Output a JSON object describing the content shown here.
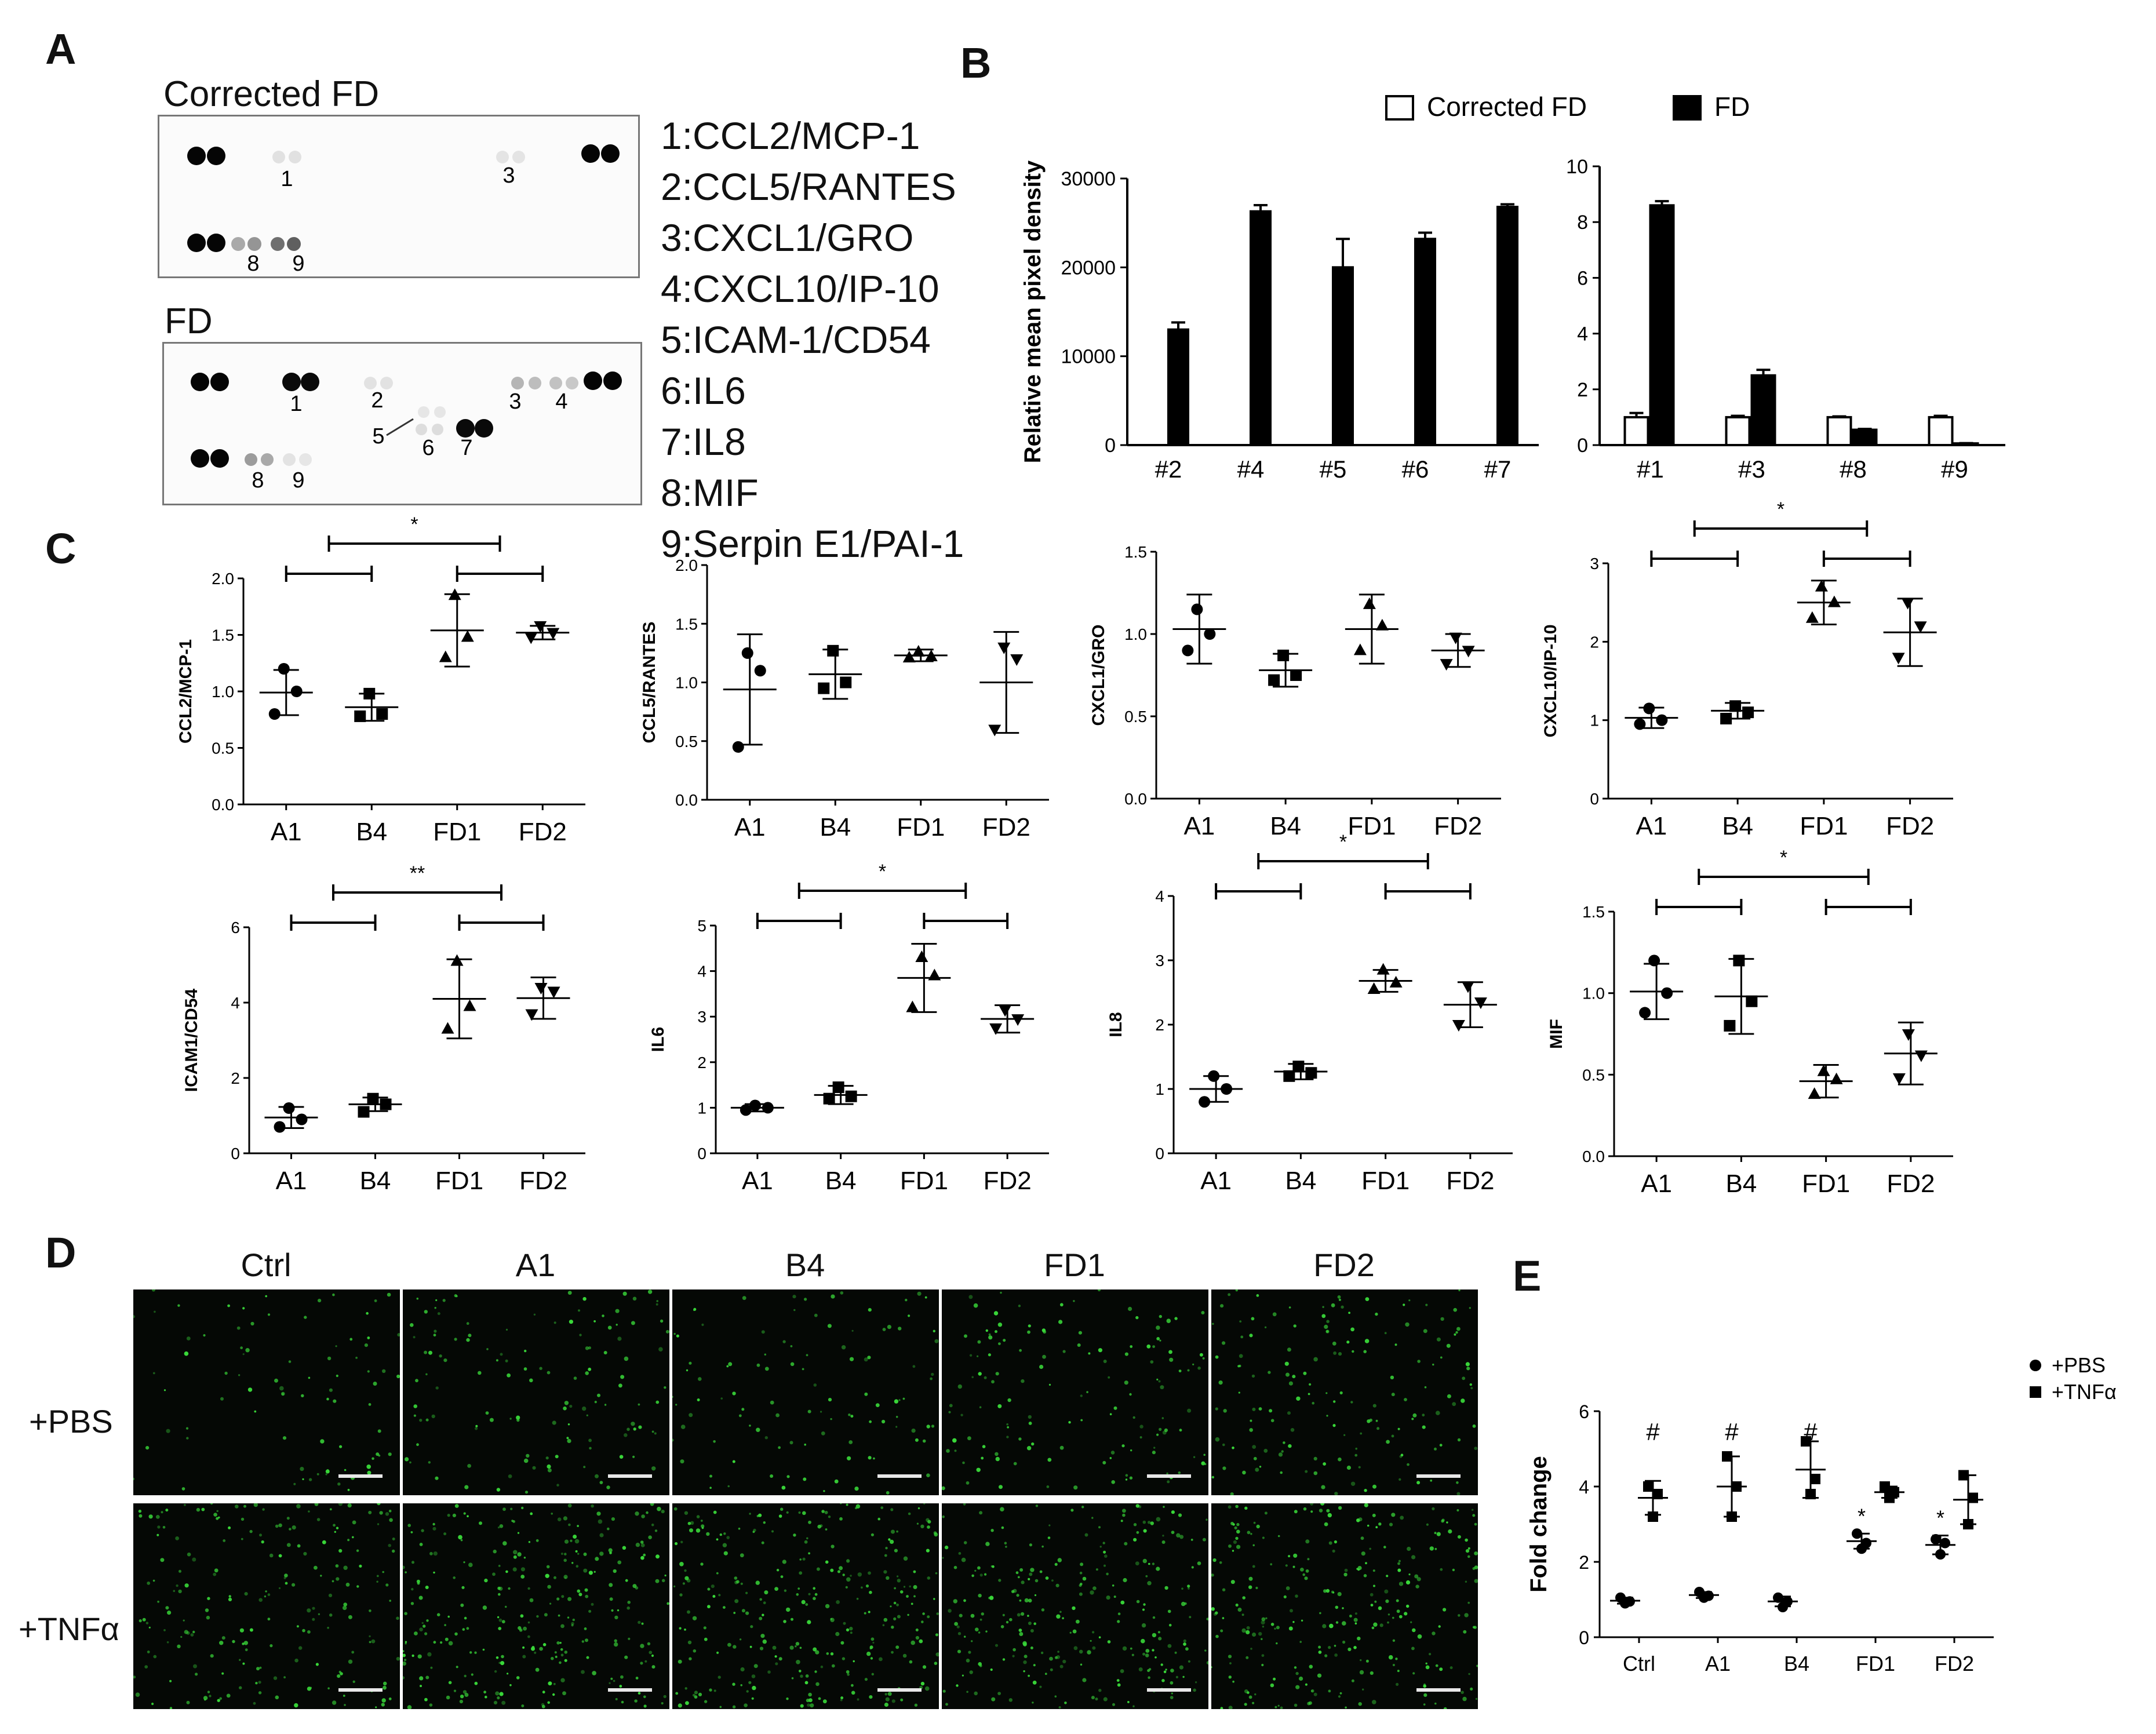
{
  "panel_labels": {
    "A": "A",
    "B": "B",
    "C": "C",
    "D": "D",
    "E": "E"
  },
  "panel_a": {
    "blots": [
      {
        "title": "Corrected FD",
        "spot_labels": [
          "1",
          "3",
          "8",
          "9"
        ],
        "note": "Reference spots at corners; faint spots at 1, 3; medium spots at 8, 9"
      },
      {
        "title": "FD",
        "spot_labels": [
          "1",
          "2",
          "3",
          "4",
          "5",
          "6",
          "7",
          "8",
          "9"
        ]
      }
    ],
    "legend": [
      "1:CCL2/MCP-1",
      "2:CCL5/RANTES",
      "3:CXCL1/GRO",
      "4:CXCL10/IP-10",
      "5:ICAM-1/CD54",
      "6:IL6",
      "7:IL8",
      "8:MIF",
      "9:Serpin E1/PAI-1"
    ]
  },
  "panel_d": {
    "columns": [
      "Ctrl",
      "A1",
      "B4",
      "FD1",
      "FD2"
    ],
    "rows": [
      "+PBS",
      "+TNFα"
    ],
    "cell_color": "#39d839",
    "density": [
      [
        0.35,
        0.55,
        0.45,
        0.6,
        0.7
      ],
      [
        0.9,
        1.25,
        1.3,
        1.15,
        1.2
      ]
    ]
  },
  "chart_data": [
    {
      "id": "B-left",
      "type": "bar",
      "ylabel": "Relative mean pixel density",
      "categories": [
        "#2",
        "#4",
        "#5",
        "#6",
        "#7"
      ],
      "ylim": [
        0,
        30000
      ],
      "yticks": [
        0,
        10000,
        20000,
        30000
      ],
      "legend": [
        "Corrected FD",
        "FD"
      ],
      "series": [
        {
          "name": "Corrected FD",
          "values": [
            0,
            0,
            0,
            0,
            0
          ],
          "errors": [
            0,
            0,
            0,
            0,
            0
          ],
          "fill": "#ffffff"
        },
        {
          "name": "FD",
          "values": [
            13000,
            26300,
            20000,
            23200,
            26800
          ],
          "errors": [
            800,
            700,
            3200,
            700,
            300
          ],
          "fill": "#000000"
        }
      ]
    },
    {
      "id": "B-right",
      "type": "bar",
      "categories": [
        "#1",
        "#3",
        "#8",
        "#9"
      ],
      "ylim": [
        0,
        10
      ],
      "yticks": [
        0,
        2,
        4,
        6,
        8,
        10
      ],
      "series": [
        {
          "name": "Corrected FD",
          "values": [
            1.0,
            1.0,
            1.0,
            1.0
          ],
          "errors": [
            0.15,
            0.05,
            0.03,
            0.05
          ],
          "fill": "#ffffff"
        },
        {
          "name": "FD",
          "values": [
            8.6,
            2.5,
            0.55,
            0.06
          ],
          "errors": [
            0.15,
            0.2,
            0.03,
            0.01
          ],
          "fill": "#000000"
        }
      ]
    },
    {
      "id": "C-CCL2",
      "type": "scatter",
      "ylabel": "CCL2/MCP-1",
      "categories": [
        "A1",
        "B4",
        "FD1",
        "FD2"
      ],
      "ylim": [
        0,
        2.0
      ],
      "yticks": [
        "0.0",
        "0.5",
        "1.0",
        "1.5",
        "2.0"
      ],
      "points": [
        [
          1.2,
          1.0,
          0.8
        ],
        [
          0.98,
          0.8,
          0.78
        ],
        [
          1.85,
          1.48,
          1.3
        ],
        [
          1.58,
          1.52,
          1.48
        ]
      ],
      "mean": [
        0.99,
        0.86,
        1.54,
        1.52
      ],
      "sd": [
        0.2,
        0.12,
        0.32,
        0.06
      ],
      "sig": [
        {
          "from": 0,
          "to": 1
        },
        {
          "from": 2,
          "to": 3
        },
        {
          "from": 0.5,
          "to": 2.5,
          "label": "*"
        }
      ]
    },
    {
      "id": "C-CCL5",
      "type": "scatter",
      "ylabel": "CCL5/RANTES",
      "categories": [
        "A1",
        "B4",
        "FD1",
        "FD2"
      ],
      "ylim": [
        0,
        2.0
      ],
      "yticks": [
        "0.0",
        "0.5",
        "1.0",
        "1.5",
        "2.0"
      ],
      "points": [
        [
          1.25,
          1.1,
          0.45
        ],
        [
          1.27,
          1.0,
          0.95
        ],
        [
          1.26,
          1.22,
          1.21
        ],
        [
          1.3,
          1.2,
          0.6
        ]
      ],
      "mean": [
        0.94,
        1.07,
        1.23,
        1.0
      ],
      "sd": [
        0.47,
        0.21,
        0.05,
        0.43
      ],
      "sig": []
    },
    {
      "id": "C-CXCL1",
      "type": "scatter",
      "ylabel": "CXCL1/GRO",
      "categories": [
        "A1",
        "B4",
        "FD1",
        "FD2"
      ],
      "ylim": [
        0,
        1.5
      ],
      "yticks": [
        "0.0",
        "0.5",
        "1.0",
        "1.5"
      ],
      "points": [
        [
          1.15,
          1.0,
          0.9
        ],
        [
          0.87,
          0.75,
          0.72
        ],
        [
          1.18,
          1.05,
          0.9
        ],
        [
          0.98,
          0.9,
          0.82
        ]
      ],
      "mean": [
        1.03,
        0.78,
        1.03,
        0.9
      ],
      "sd": [
        0.21,
        0.1,
        0.21,
        0.1
      ],
      "sig": []
    },
    {
      "id": "C-CXCL10",
      "type": "scatter",
      "ylabel": "CXCL10/IP-10",
      "categories": [
        "A1",
        "B4",
        "FD1",
        "FD2"
      ],
      "ylim": [
        0,
        3
      ],
      "yticks": [
        "0",
        "1",
        "2",
        "3"
      ],
      "points": [
        [
          1.15,
          1.0,
          0.95
        ],
        [
          1.18,
          1.1,
          1.02
        ],
        [
          2.7,
          2.5,
          2.3
        ],
        [
          2.5,
          2.2,
          1.8
        ]
      ],
      "mean": [
        1.03,
        1.12,
        2.5,
        2.12
      ],
      "sd": [
        0.13,
        0.1,
        0.28,
        0.43
      ],
      "sig": [
        {
          "from": 0,
          "to": 1
        },
        {
          "from": 2,
          "to": 3
        },
        {
          "from": 0.5,
          "to": 2.5,
          "label": "*"
        }
      ]
    },
    {
      "id": "C-ICAM1",
      "type": "scatter",
      "ylabel": "ICAM1/CD54",
      "categories": [
        "A1",
        "B4",
        "FD1",
        "FD2"
      ],
      "ylim": [
        0,
        6
      ],
      "yticks": [
        "0",
        "2",
        "4",
        "6"
      ],
      "points": [
        [
          1.2,
          0.9,
          0.7
        ],
        [
          1.45,
          1.3,
          1.1
        ],
        [
          5.1,
          3.9,
          3.3
        ],
        [
          4.4,
          4.3,
          3.7
        ]
      ],
      "mean": [
        0.95,
        1.3,
        4.1,
        4.12
      ],
      "sd": [
        0.28,
        0.18,
        1.05,
        0.55
      ],
      "sig": [
        {
          "from": 0,
          "to": 1
        },
        {
          "from": 2,
          "to": 3
        },
        {
          "from": 0.5,
          "to": 2.5,
          "label": "**"
        }
      ]
    },
    {
      "id": "C-IL6",
      "type": "scatter",
      "ylabel": "IL6",
      "categories": [
        "A1",
        "B4",
        "FD1",
        "FD2"
      ],
      "ylim": [
        0,
        5
      ],
      "yticks": [
        "0",
        "1",
        "2",
        "3",
        "4",
        "5"
      ],
      "points": [
        [
          1.05,
          1.0,
          0.95
        ],
        [
          1.45,
          1.25,
          1.2
        ],
        [
          4.3,
          3.9,
          3.2
        ],
        [
          3.15,
          2.95,
          2.75
        ]
      ],
      "mean": [
        1.0,
        1.28,
        3.85,
        2.95
      ],
      "sd": [
        0.08,
        0.2,
        0.75,
        0.3
      ],
      "sig": [
        {
          "from": 0,
          "to": 1
        },
        {
          "from": 2,
          "to": 3
        },
        {
          "from": 0.5,
          "to": 2.5,
          "label": "*"
        }
      ]
    },
    {
      "id": "C-IL8",
      "type": "scatter",
      "ylabel": "IL8",
      "categories": [
        "A1",
        "B4",
        "FD1",
        "FD2"
      ],
      "ylim": [
        0,
        4
      ],
      "yticks": [
        "0",
        "1",
        "2",
        "3",
        "4"
      ],
      "points": [
        [
          1.2,
          1.0,
          0.8
        ],
        [
          1.35,
          1.25,
          1.2
        ],
        [
          2.85,
          2.65,
          2.55
        ],
        [
          2.6,
          2.35,
          2.0
        ]
      ],
      "mean": [
        1.0,
        1.27,
        2.68,
        2.31
      ],
      "sd": [
        0.2,
        0.12,
        0.17,
        0.35
      ],
      "sig": [
        {
          "from": 0,
          "to": 1
        },
        {
          "from": 2,
          "to": 3
        },
        {
          "from": 0.5,
          "to": 2.5,
          "label": "*"
        }
      ]
    },
    {
      "id": "C-MIF",
      "type": "scatter",
      "ylabel": "MIF",
      "categories": [
        "A1",
        "B4",
        "FD1",
        "FD2"
      ],
      "ylim": [
        0,
        1.5
      ],
      "yticks": [
        "0.0",
        "0.5",
        "1.0",
        "1.5"
      ],
      "points": [
        [
          1.2,
          1.0,
          0.88
        ],
        [
          1.2,
          0.95,
          0.8
        ],
        [
          0.52,
          0.47,
          0.38
        ],
        [
          0.75,
          0.62,
          0.48
        ]
      ],
      "mean": [
        1.01,
        0.98,
        0.46,
        0.63
      ],
      "sd": [
        0.17,
        0.23,
        0.1,
        0.19
      ],
      "sig": [
        {
          "from": 0,
          "to": 1
        },
        {
          "from": 2,
          "to": 3
        },
        {
          "from": 0.5,
          "to": 2.5,
          "label": "*"
        }
      ]
    },
    {
      "id": "E",
      "type": "scatter",
      "ylabel": "Fold change",
      "categories": [
        "Ctrl",
        "A1",
        "B4",
        "FD1",
        "FD2"
      ],
      "ylim": [
        0,
        6
      ],
      "yticks": [
        "0",
        "2",
        "4",
        "6"
      ],
      "series": [
        {
          "name": "+PBS",
          "marker": "circle",
          "points": [
            [
              1.05,
              0.95,
              0.9
            ],
            [
              1.2,
              1.1,
              1.05
            ],
            [
              1.05,
              0.95,
              0.8
            ],
            [
              2.75,
              2.5,
              2.35
            ],
            [
              2.6,
              2.5,
              2.2
            ]
          ],
          "mean": [
            0.97,
            1.12,
            0.95,
            2.55,
            2.45
          ],
          "sd": [
            0.08,
            0.08,
            0.13,
            0.2,
            0.25
          ],
          "marks": [
            "",
            "",
            "",
            "*",
            "*"
          ]
        },
        {
          "name": "+TNFα",
          "marker": "square",
          "points": [
            [
              4.0,
              3.8,
              3.2
            ],
            [
              4.8,
              4.0,
              3.2
            ],
            [
              5.2,
              4.2,
              3.8
            ],
            [
              4.0,
              3.85,
              3.7
            ],
            [
              4.3,
              3.7,
              3.0
            ]
          ],
          "mean": [
            3.7,
            4.0,
            4.45,
            3.85,
            3.65
          ],
          "sd": [
            0.45,
            0.8,
            0.75,
            0.15,
            0.65
          ],
          "marks": [
            "#",
            "#",
            "#",
            "",
            ""
          ]
        }
      ]
    }
  ]
}
